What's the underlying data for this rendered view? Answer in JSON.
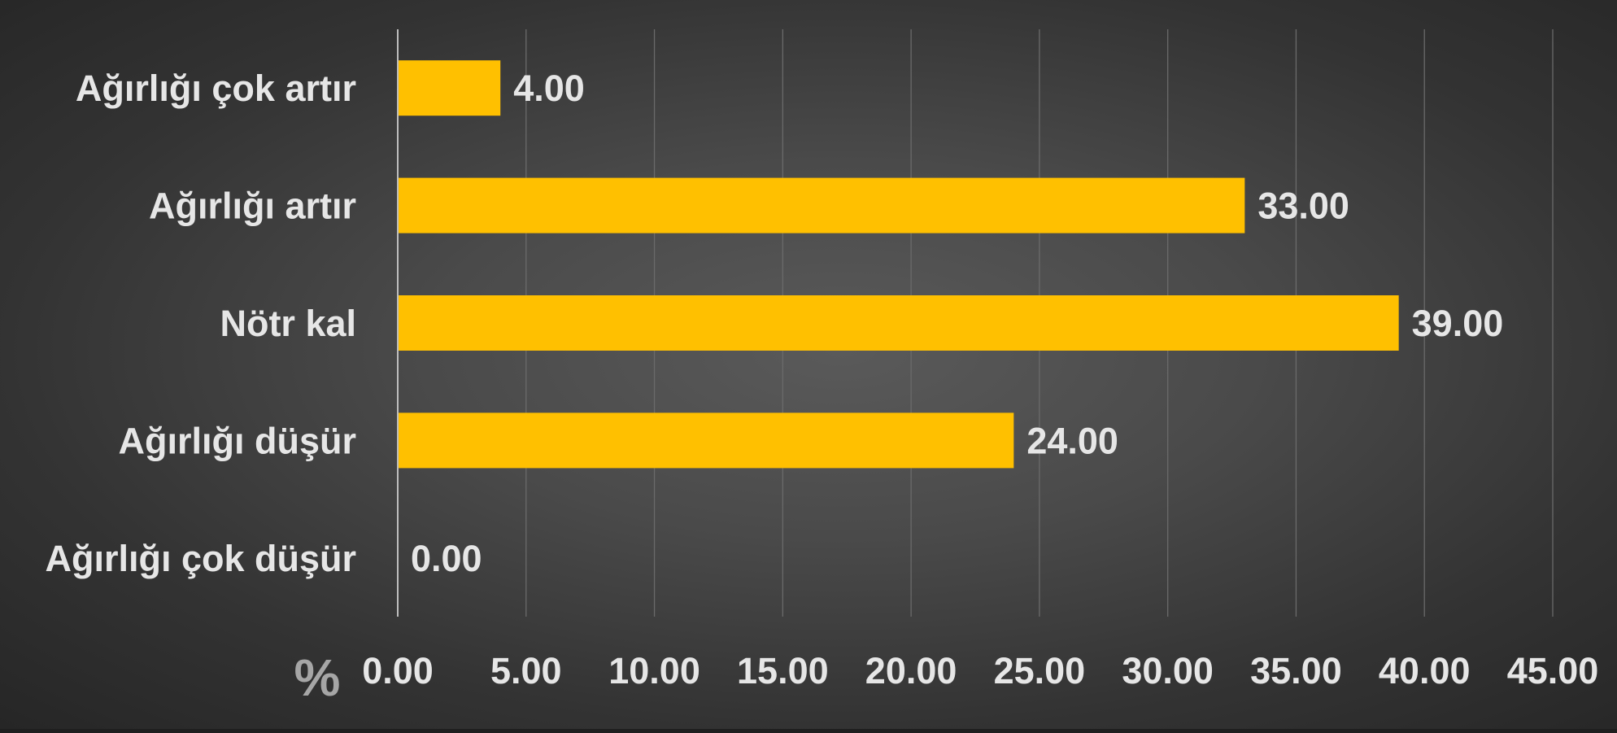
{
  "colors": {
    "bar": "#FFC000",
    "text": "#E6E6E6",
    "gridline": "#6A6A6A",
    "axis": "#BDBDBD",
    "unit": "#A6A6A6"
  },
  "chart_data": {
    "type": "bar",
    "orientation": "horizontal",
    "categories": [
      "Ağırlığı çok artır",
      "Ağırlığı artır",
      "Nötr kal",
      "Ağırlığı düşür",
      "Ağırlığı çok düşür"
    ],
    "values": [
      4.0,
      33.0,
      39.0,
      24.0,
      0.0
    ],
    "data_labels": [
      "4.00",
      "33.00",
      "39.00",
      "24.00",
      "0.00"
    ],
    "x_ticks": [
      0,
      5,
      10,
      15,
      20,
      25,
      30,
      35,
      40,
      45
    ],
    "x_tick_labels": [
      "0.00",
      "5.00",
      "10.00",
      "15.00",
      "20.00",
      "25.00",
      "30.00",
      "35.00",
      "40.00",
      "45.00"
    ],
    "xlim": [
      0,
      45
    ],
    "unit_label": "%",
    "grid": true,
    "legend": "none"
  }
}
